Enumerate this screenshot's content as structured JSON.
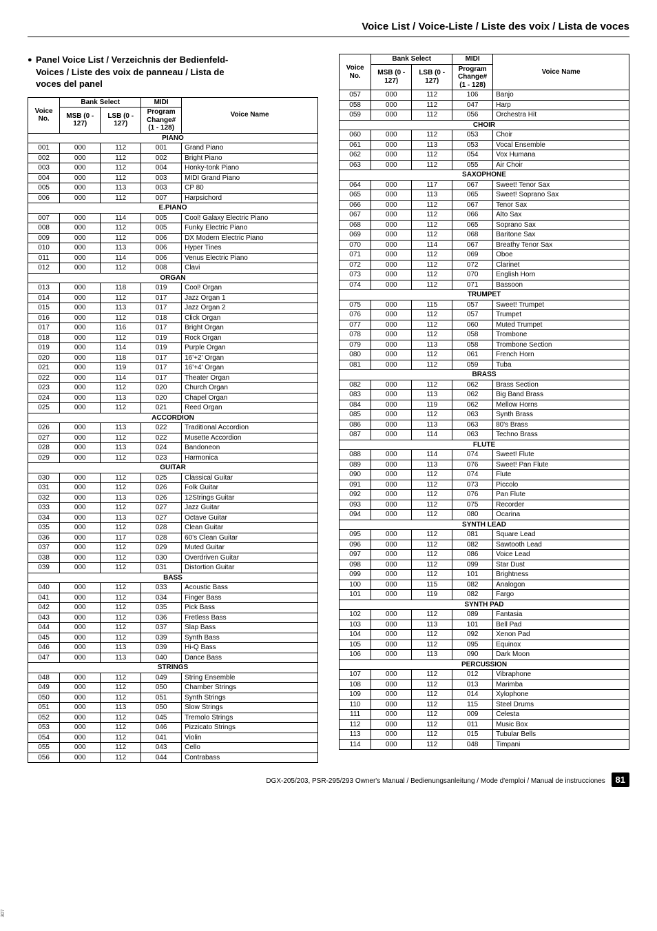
{
  "page_title": "Voice List / Voice-Liste / Liste des voix / Lista de voces",
  "subtitle_lines": [
    "Panel Voice List / Verzeichnis der Bedienfeld-",
    "Voices / Liste des voix de panneau / Lista de",
    "voces del panel"
  ],
  "headers": {
    "voice_no": "Voice No.",
    "bank_select": "Bank Select",
    "msb": "MSB (0 - 127)",
    "lsb": "LSB (0 - 127)",
    "midi": "MIDI",
    "program": "Program Change# (1 - 128)",
    "voice_name": "Voice Name"
  },
  "sections_left": [
    {
      "title": "PIANO",
      "rows": [
        [
          "001",
          "000",
          "112",
          "001",
          "Grand Piano"
        ],
        [
          "002",
          "000",
          "112",
          "002",
          "Bright Piano"
        ],
        [
          "003",
          "000",
          "112",
          "004",
          "Honky-tonk Piano"
        ],
        [
          "004",
          "000",
          "112",
          "003",
          "MIDI Grand Piano"
        ],
        [
          "005",
          "000",
          "113",
          "003",
          "CP 80"
        ],
        [
          "006",
          "000",
          "112",
          "007",
          "Harpsichord"
        ]
      ]
    },
    {
      "title": "E.PIANO",
      "rows": [
        [
          "007",
          "000",
          "114",
          "005",
          "Cool! Galaxy Electric Piano"
        ],
        [
          "008",
          "000",
          "112",
          "005",
          "Funky Electric Piano"
        ],
        [
          "009",
          "000",
          "112",
          "006",
          "DX Modern Electric Piano"
        ],
        [
          "010",
          "000",
          "113",
          "006",
          "Hyper Tines"
        ],
        [
          "011",
          "000",
          "114",
          "006",
          "Venus Electric Piano"
        ],
        [
          "012",
          "000",
          "112",
          "008",
          "Clavi"
        ]
      ]
    },
    {
      "title": "ORGAN",
      "rows": [
        [
          "013",
          "000",
          "118",
          "019",
          "Cool! Organ"
        ],
        [
          "014",
          "000",
          "112",
          "017",
          "Jazz Organ 1"
        ],
        [
          "015",
          "000",
          "113",
          "017",
          "Jazz Organ 2"
        ],
        [
          "016",
          "000",
          "112",
          "018",
          "Click Organ"
        ],
        [
          "017",
          "000",
          "116",
          "017",
          "Bright Organ"
        ],
        [
          "018",
          "000",
          "112",
          "019",
          "Rock Organ"
        ],
        [
          "019",
          "000",
          "114",
          "019",
          "Purple Organ"
        ],
        [
          "020",
          "000",
          "118",
          "017",
          "16'+2' Organ"
        ],
        [
          "021",
          "000",
          "119",
          "017",
          "16'+4' Organ"
        ],
        [
          "022",
          "000",
          "114",
          "017",
          "Theater Organ"
        ],
        [
          "023",
          "000",
          "112",
          "020",
          "Church Organ"
        ],
        [
          "024",
          "000",
          "113",
          "020",
          "Chapel Organ"
        ],
        [
          "025",
          "000",
          "112",
          "021",
          "Reed Organ"
        ]
      ]
    },
    {
      "title": "ACCORDION",
      "rows": [
        [
          "026",
          "000",
          "113",
          "022",
          "Traditional Accordion"
        ],
        [
          "027",
          "000",
          "112",
          "022",
          "Musette Accordion"
        ],
        [
          "028",
          "000",
          "113",
          "024",
          "Bandoneon"
        ],
        [
          "029",
          "000",
          "112",
          "023",
          "Harmonica"
        ]
      ]
    },
    {
      "title": "GUITAR",
      "rows": [
        [
          "030",
          "000",
          "112",
          "025",
          "Classical Guitar"
        ],
        [
          "031",
          "000",
          "112",
          "026",
          "Folk Guitar"
        ],
        [
          "032",
          "000",
          "113",
          "026",
          "12Strings Guitar"
        ],
        [
          "033",
          "000",
          "112",
          "027",
          "Jazz Guitar"
        ],
        [
          "034",
          "000",
          "113",
          "027",
          "Octave Guitar"
        ],
        [
          "035",
          "000",
          "112",
          "028",
          "Clean Guitar"
        ],
        [
          "036",
          "000",
          "117",
          "028",
          "60's Clean Guitar"
        ],
        [
          "037",
          "000",
          "112",
          "029",
          "Muted Guitar"
        ],
        [
          "038",
          "000",
          "112",
          "030",
          "Overdriven Guitar"
        ],
        [
          "039",
          "000",
          "112",
          "031",
          "Distortion Guitar"
        ]
      ]
    },
    {
      "title": "BASS",
      "rows": [
        [
          "040",
          "000",
          "112",
          "033",
          "Acoustic Bass"
        ],
        [
          "041",
          "000",
          "112",
          "034",
          "Finger Bass"
        ],
        [
          "042",
          "000",
          "112",
          "035",
          "Pick Bass"
        ],
        [
          "043",
          "000",
          "112",
          "036",
          "Fretless Bass"
        ],
        [
          "044",
          "000",
          "112",
          "037",
          "Slap Bass"
        ],
        [
          "045",
          "000",
          "112",
          "039",
          "Synth Bass"
        ],
        [
          "046",
          "000",
          "113",
          "039",
          "Hi-Q Bass"
        ],
        [
          "047",
          "000",
          "113",
          "040",
          "Dance Bass"
        ]
      ]
    },
    {
      "title": "STRINGS",
      "rows": [
        [
          "048",
          "000",
          "112",
          "049",
          "String Ensemble"
        ],
        [
          "049",
          "000",
          "112",
          "050",
          "Chamber Strings"
        ],
        [
          "050",
          "000",
          "112",
          "051",
          "Synth Strings"
        ],
        [
          "051",
          "000",
          "113",
          "050",
          "Slow Strings"
        ],
        [
          "052",
          "000",
          "112",
          "045",
          "Tremolo Strings"
        ],
        [
          "053",
          "000",
          "112",
          "046",
          "Pizzicato Strings"
        ],
        [
          "054",
          "000",
          "112",
          "041",
          "Violin"
        ],
        [
          "055",
          "000",
          "112",
          "043",
          "Cello"
        ],
        [
          "056",
          "000",
          "112",
          "044",
          "Contrabass"
        ]
      ]
    }
  ],
  "sections_right": [
    {
      "title": "",
      "rows": [
        [
          "057",
          "000",
          "112",
          "106",
          "Banjo"
        ],
        [
          "058",
          "000",
          "112",
          "047",
          "Harp"
        ],
        [
          "059",
          "000",
          "112",
          "056",
          "Orchestra Hit"
        ]
      ]
    },
    {
      "title": "CHOIR",
      "rows": [
        [
          "060",
          "000",
          "112",
          "053",
          "Choir"
        ],
        [
          "061",
          "000",
          "113",
          "053",
          "Vocal Ensemble"
        ],
        [
          "062",
          "000",
          "112",
          "054",
          "Vox Humana"
        ],
        [
          "063",
          "000",
          "112",
          "055",
          "Air Choir"
        ]
      ]
    },
    {
      "title": "SAXOPHONE",
      "rows": [
        [
          "064",
          "000",
          "117",
          "067",
          "Sweet! Tenor Sax"
        ],
        [
          "065",
          "000",
          "113",
          "065",
          "Sweet! Soprano Sax"
        ],
        [
          "066",
          "000",
          "112",
          "067",
          "Tenor Sax"
        ],
        [
          "067",
          "000",
          "112",
          "066",
          "Alto Sax"
        ],
        [
          "068",
          "000",
          "112",
          "065",
          "Soprano Sax"
        ],
        [
          "069",
          "000",
          "112",
          "068",
          "Baritone Sax"
        ],
        [
          "070",
          "000",
          "114",
          "067",
          "Breathy Tenor Sax"
        ],
        [
          "071",
          "000",
          "112",
          "069",
          "Oboe"
        ],
        [
          "072",
          "000",
          "112",
          "072",
          "Clarinet"
        ],
        [
          "073",
          "000",
          "112",
          "070",
          "English Horn"
        ],
        [
          "074",
          "000",
          "112",
          "071",
          "Bassoon"
        ]
      ]
    },
    {
      "title": "TRUMPET",
      "rows": [
        [
          "075",
          "000",
          "115",
          "057",
          "Sweet! Trumpet"
        ],
        [
          "076",
          "000",
          "112",
          "057",
          "Trumpet"
        ],
        [
          "077",
          "000",
          "112",
          "060",
          "Muted Trumpet"
        ],
        [
          "078",
          "000",
          "112",
          "058",
          "Trombone"
        ],
        [
          "079",
          "000",
          "113",
          "058",
          "Trombone Section"
        ],
        [
          "080",
          "000",
          "112",
          "061",
          "French Horn"
        ],
        [
          "081",
          "000",
          "112",
          "059",
          "Tuba"
        ]
      ]
    },
    {
      "title": "BRASS",
      "rows": [
        [
          "082",
          "000",
          "112",
          "062",
          "Brass Section"
        ],
        [
          "083",
          "000",
          "113",
          "062",
          "Big Band Brass"
        ],
        [
          "084",
          "000",
          "119",
          "062",
          "Mellow Horns"
        ],
        [
          "085",
          "000",
          "112",
          "063",
          "Synth Brass"
        ],
        [
          "086",
          "000",
          "113",
          "063",
          "80's Brass"
        ],
        [
          "087",
          "000",
          "114",
          "063",
          "Techno Brass"
        ]
      ]
    },
    {
      "title": "FLUTE",
      "rows": [
        [
          "088",
          "000",
          "114",
          "074",
          "Sweet! Flute"
        ],
        [
          "089",
          "000",
          "113",
          "076",
          "Sweet! Pan Flute"
        ],
        [
          "090",
          "000",
          "112",
          "074",
          "Flute"
        ],
        [
          "091",
          "000",
          "112",
          "073",
          "Piccolo"
        ],
        [
          "092",
          "000",
          "112",
          "076",
          "Pan Flute"
        ],
        [
          "093",
          "000",
          "112",
          "075",
          "Recorder"
        ],
        [
          "094",
          "000",
          "112",
          "080",
          "Ocarina"
        ]
      ]
    },
    {
      "title": "SYNTH LEAD",
      "rows": [
        [
          "095",
          "000",
          "112",
          "081",
          "Square Lead"
        ],
        [
          "096",
          "000",
          "112",
          "082",
          "Sawtooth Lead"
        ],
        [
          "097",
          "000",
          "112",
          "086",
          "Voice Lead"
        ],
        [
          "098",
          "000",
          "112",
          "099",
          "Star Dust"
        ],
        [
          "099",
          "000",
          "112",
          "101",
          "Brightness"
        ],
        [
          "100",
          "000",
          "115",
          "082",
          "Analogon"
        ],
        [
          "101",
          "000",
          "119",
          "082",
          "Fargo"
        ]
      ]
    },
    {
      "title": "SYNTH PAD",
      "rows": [
        [
          "102",
          "000",
          "112",
          "089",
          "Fantasia"
        ],
        [
          "103",
          "000",
          "113",
          "101",
          "Bell Pad"
        ],
        [
          "104",
          "000",
          "112",
          "092",
          "Xenon Pad"
        ],
        [
          "105",
          "000",
          "112",
          "095",
          "Equinox"
        ],
        [
          "106",
          "000",
          "113",
          "090",
          "Dark Moon"
        ]
      ]
    },
    {
      "title": "PERCUSSION",
      "rows": [
        [
          "107",
          "000",
          "112",
          "012",
          "Vibraphone"
        ],
        [
          "108",
          "000",
          "112",
          "013",
          "Marimba"
        ],
        [
          "109",
          "000",
          "112",
          "014",
          "Xylophone"
        ],
        [
          "110",
          "000",
          "112",
          "115",
          "Steel Drums"
        ],
        [
          "111",
          "000",
          "112",
          "009",
          "Celesta"
        ],
        [
          "112",
          "000",
          "112",
          "011",
          "Music Box"
        ],
        [
          "113",
          "000",
          "112",
          "015",
          "Tubular Bells"
        ],
        [
          "114",
          "000",
          "112",
          "048",
          "Timpani"
        ]
      ]
    }
  ],
  "footer_text": "DGX-205/203, PSR-295/293  Owner's Manual / Bedienungsanleitung / Mode d'emploi / Manual de instrucciones",
  "page_number": "81",
  "side_code": "307"
}
